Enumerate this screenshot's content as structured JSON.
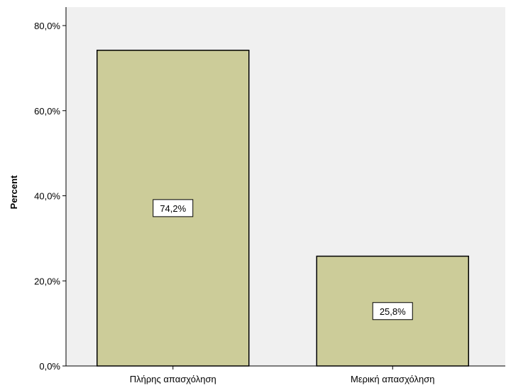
{
  "chart_data": {
    "type": "bar",
    "title": "",
    "xlabel": "",
    "ylabel": "Percent",
    "categories": [
      "Πλήρης απασχόληση",
      "Μερική απασχόληση"
    ],
    "values": [
      74.2,
      25.8
    ],
    "data_labels": [
      "74,2%",
      "25,8%"
    ],
    "ylim": [
      0,
      80
    ],
    "yticks": [
      0,
      20,
      40,
      60,
      80
    ],
    "ytick_labels": [
      "0,0%",
      "20,0%",
      "40,0%",
      "60,0%",
      "80,0%"
    ],
    "grid": false,
    "legend": "none",
    "colors": {
      "bar_fill": "#cccc99",
      "bar_stroke": "#000000",
      "plot_background": "#f0f0f0"
    }
  }
}
